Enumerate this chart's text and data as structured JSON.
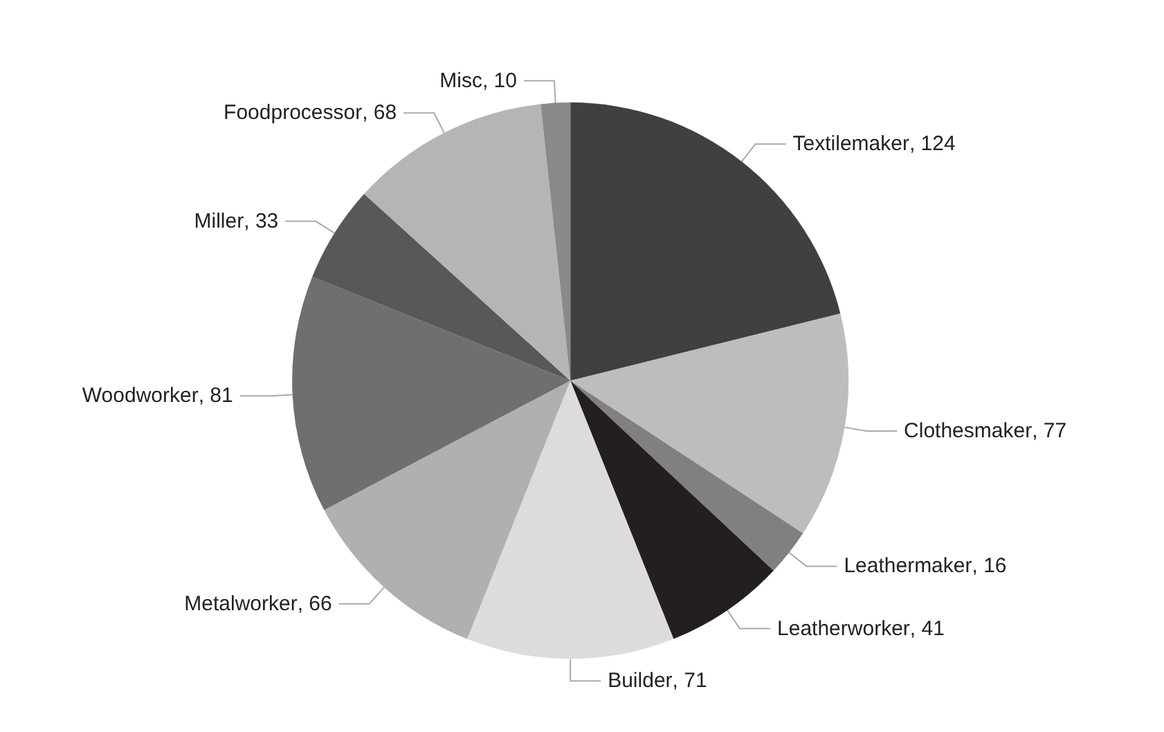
{
  "chart_data": {
    "type": "pie",
    "categories": [
      "Textilemaker",
      "Clothesmaker",
      "Leathermaker",
      "Leatherworker",
      "Builder",
      "Metalworker",
      "Woodworker",
      "Miller",
      "Foodprocessor",
      "Misc"
    ],
    "values": [
      124,
      77,
      16,
      41,
      71,
      66,
      81,
      33,
      68,
      10
    ],
    "colors": [
      "#404040",
      "#bdbdbd",
      "#808080",
      "#231f20",
      "#dcdcdc",
      "#b0b0b0",
      "#6f6f6f",
      "#585858",
      "#b5b5b5",
      "#8a8a8a"
    ],
    "value_labels": [
      ", 124",
      ", 77",
      ", 16",
      ", 41",
      ", 71",
      ", 66",
      ", 81",
      ", 33",
      ", 68",
      ", 10"
    ]
  }
}
